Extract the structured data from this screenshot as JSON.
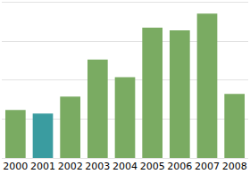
{
  "chart_data": {
    "type": "bar",
    "categories": [
      "2000",
      "2001",
      "2002",
      "2003",
      "2004",
      "2005",
      "2006",
      "2007",
      "2008"
    ],
    "values": [
      1.23,
      1.14,
      1.57,
      2.52,
      2.07,
      3.34,
      3.27,
      3.7,
      1.64
    ],
    "colors": [
      "#7aab62",
      "#3a9ca0",
      "#7aab62",
      "#7aab62",
      "#7aab62",
      "#7aab62",
      "#7aab62",
      "#7aab62",
      "#7aab62"
    ],
    "ylim": [
      0,
      4
    ],
    "yticks": [
      0,
      1,
      2,
      3,
      4
    ],
    "grid": true,
    "tick_labels": "x"
  }
}
